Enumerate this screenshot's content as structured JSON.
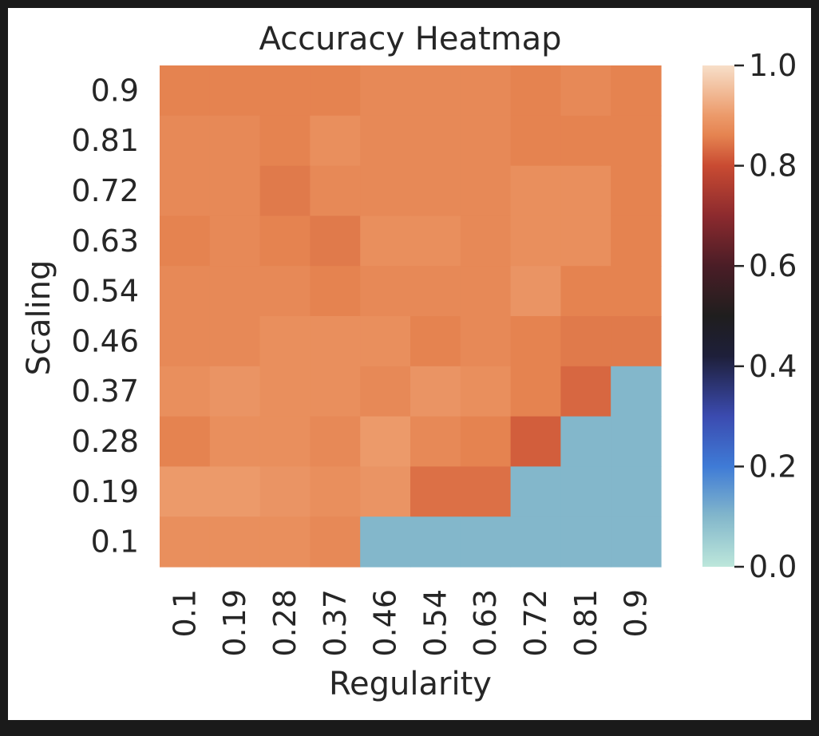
{
  "chart_data": {
    "type": "heatmap",
    "title": "Accuracy Heatmap",
    "xlabel": "Regularity",
    "ylabel": "Scaling",
    "x": [
      "0.1",
      "0.19",
      "0.28",
      "0.37",
      "0.46",
      "0.54",
      "0.63",
      "0.72",
      "0.81",
      "0.9"
    ],
    "y": [
      "0.9",
      "0.81",
      "0.72",
      "0.63",
      "0.54",
      "0.46",
      "0.37",
      "0.28",
      "0.19",
      "0.1"
    ],
    "values": [
      [
        0.86,
        0.86,
        0.86,
        0.86,
        0.87,
        0.87,
        0.87,
        0.86,
        0.87,
        0.86
      ],
      [
        0.87,
        0.87,
        0.86,
        0.88,
        0.87,
        0.87,
        0.87,
        0.86,
        0.86,
        0.86
      ],
      [
        0.87,
        0.87,
        0.85,
        0.87,
        0.87,
        0.87,
        0.87,
        0.88,
        0.88,
        0.86
      ],
      [
        0.86,
        0.87,
        0.86,
        0.85,
        0.88,
        0.88,
        0.87,
        0.88,
        0.88,
        0.86
      ],
      [
        0.87,
        0.87,
        0.87,
        0.86,
        0.87,
        0.87,
        0.87,
        0.89,
        0.86,
        0.86
      ],
      [
        0.87,
        0.87,
        0.88,
        0.88,
        0.88,
        0.86,
        0.87,
        0.86,
        0.85,
        0.85
      ],
      [
        0.88,
        0.89,
        0.88,
        0.88,
        0.87,
        0.89,
        0.88,
        0.86,
        0.83,
        0.1
      ],
      [
        0.86,
        0.88,
        0.88,
        0.87,
        0.9,
        0.87,
        0.86,
        0.82,
        0.1,
        0.1
      ],
      [
        0.9,
        0.9,
        0.89,
        0.88,
        0.89,
        0.84,
        0.84,
        0.1,
        0.1,
        0.1
      ],
      [
        0.88,
        0.88,
        0.88,
        0.87,
        0.1,
        0.1,
        0.1,
        0.1,
        0.1,
        0.1
      ]
    ],
    "vmin": 0.0,
    "vmax": 1.0,
    "colorbar_ticks": [
      "0.0",
      "0.2",
      "0.4",
      "0.6",
      "0.8",
      "1.0"
    ],
    "colormap": "icefire",
    "colormap_stops": [
      {
        "v": 0.0,
        "color": "#bde7db"
      },
      {
        "v": 0.1,
        "color": "#83b7cb"
      },
      {
        "v": 0.2,
        "color": "#3f7bd6"
      },
      {
        "v": 0.3,
        "color": "#3b4bb0"
      },
      {
        "v": 0.42,
        "color": "#1e1f3a"
      },
      {
        "v": 0.5,
        "color": "#1f1e1e"
      },
      {
        "v": 0.6,
        "color": "#4a1d26"
      },
      {
        "v": 0.7,
        "color": "#8c2a2e"
      },
      {
        "v": 0.8,
        "color": "#c94b32"
      },
      {
        "v": 0.86,
        "color": "#e58350"
      },
      {
        "v": 0.9,
        "color": "#ec9a6a"
      },
      {
        "v": 1.0,
        "color": "#f7dfc9"
      }
    ],
    "grid": false,
    "legend": "colorbar-right"
  }
}
